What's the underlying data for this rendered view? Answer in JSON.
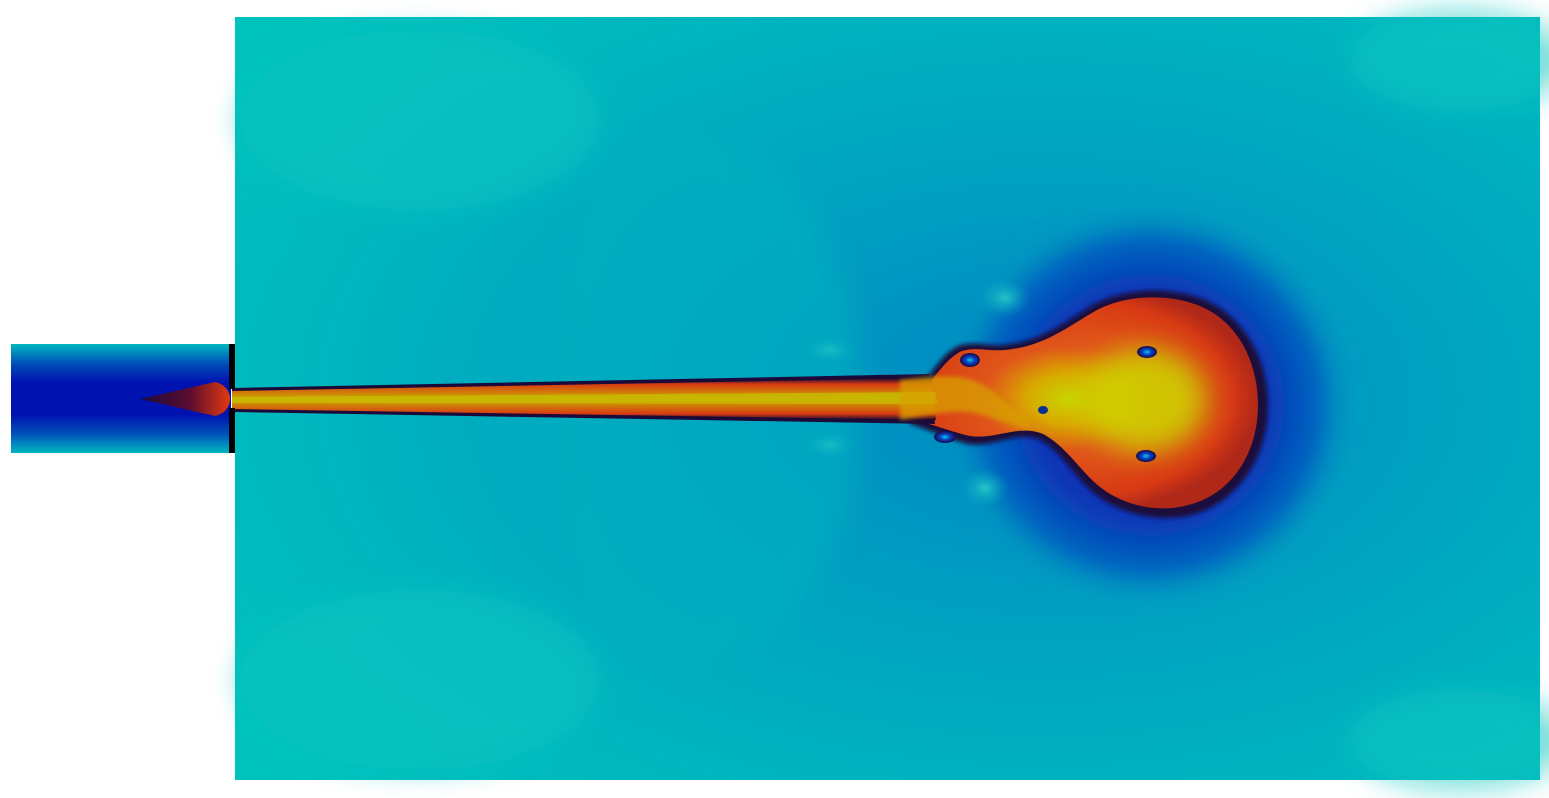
{
  "colors": {
    "page_background": "#ffffff",
    "field_base": "#00bcbd",
    "field_mid": "#00a6bf",
    "field_low": "#0096c2",
    "field_dark": "#0a2fb4",
    "core_dark": "#1b0a3a",
    "core_red": "#d93a10",
    "core_hot": "#e05a10",
    "core_yellow": "#c8d000",
    "inlet_blue": "#0010b0",
    "wall": "#000000"
  },
  "scene": {
    "description_free": true,
    "elements": [
      "channel-domain",
      "inlet-pipe",
      "nozzle-wall",
      "jet-column",
      "jet-head",
      "vortex-pair",
      "inlet-cone"
    ]
  }
}
